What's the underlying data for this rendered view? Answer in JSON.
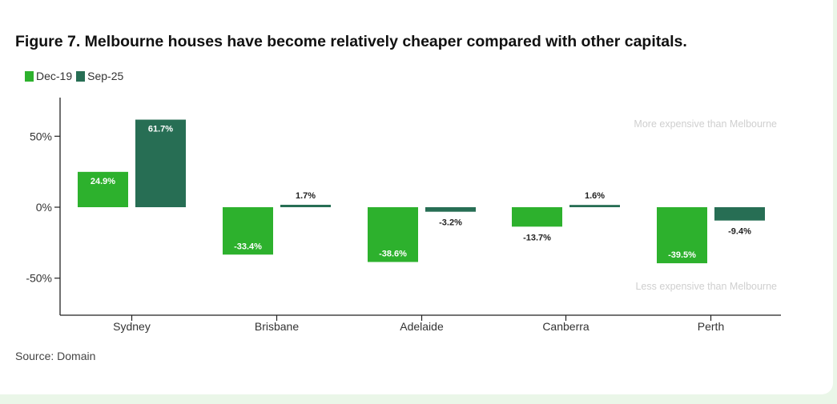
{
  "title": "Figure 7. Melbourne houses have become relatively cheaper compared with other capitals.",
  "source": "Source: Domain",
  "legend": [
    {
      "label": "Dec-19",
      "color": "#2db12d"
    },
    {
      "label": "Sep-25",
      "color": "#276e54"
    }
  ],
  "annotations": {
    "top": "More expensive than Melbourne",
    "bottom": "Less expensive than Melbourne"
  },
  "chart_data": {
    "type": "bar",
    "title": "Figure 7. Melbourne houses have become relatively cheaper compared with other capitals.",
    "categories": [
      "Sydney",
      "Brisbane",
      "Adelaide",
      "Canberra",
      "Perth"
    ],
    "series": [
      {
        "name": "Dec-19",
        "color": "#2db12d",
        "values": [
          24.9,
          -33.4,
          -38.6,
          -13.7,
          -39.5
        ]
      },
      {
        "name": "Sep-25",
        "color": "#276e54",
        "values": [
          61.7,
          1.7,
          -3.2,
          1.6,
          -9.4
        ]
      }
    ],
    "data_labels": [
      [
        "24.9%",
        "-33.4%",
        "-38.6%",
        "-13.7%",
        "-39.5%"
      ],
      [
        "61.7%",
        "1.7%",
        "-3.2%",
        "1.6%",
        "-9.4%"
      ]
    ],
    "yticks": [
      50,
      0,
      -50
    ],
    "ytick_labels": [
      "50%",
      "0%",
      "-50%"
    ],
    "ylim": [
      -75,
      75
    ],
    "xlabel": "",
    "ylabel": "",
    "grid": false,
    "legend_position": "top-left"
  }
}
